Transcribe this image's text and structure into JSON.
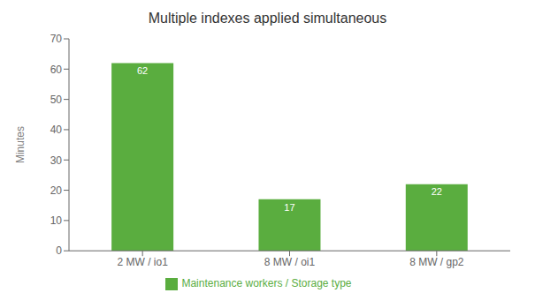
{
  "chart_data": {
    "type": "bar",
    "title": "Multiple indexes applied simultaneous",
    "categories": [
      "2 MW / io1",
      "8 MW / oi1",
      "8 MW / gp2"
    ],
    "series": [
      {
        "name": "Maintenance workers / Storage type",
        "color": "#5aad3f",
        "values": [
          62,
          17,
          22
        ]
      }
    ],
    "ylabel": "Minutes",
    "ylim": [
      0,
      70
    ],
    "yticks": [
      0,
      10,
      20,
      30,
      40,
      50,
      60,
      70
    ],
    "grid": false,
    "legend": "bottom",
    "data_labels": true
  }
}
